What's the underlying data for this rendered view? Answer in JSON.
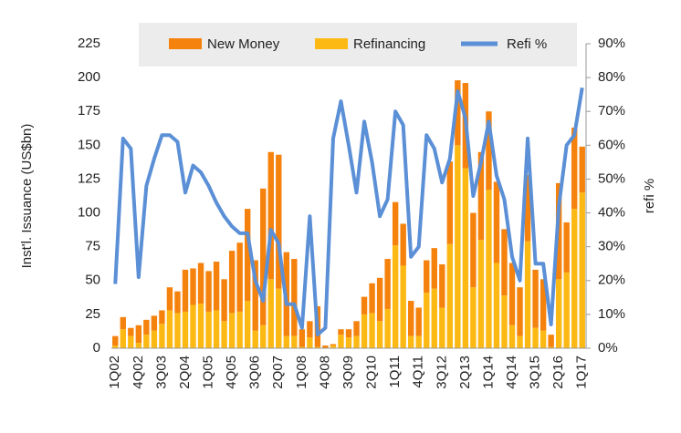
{
  "chart_data": {
    "type": "bar-line",
    "y_label": "Inst'l. Issuance (US$bn)",
    "y2_label": "refi %",
    "categories": [
      "1Q02",
      null,
      null,
      "4Q02",
      null,
      null,
      "3Q03",
      null,
      null,
      "2Q04",
      null,
      null,
      "1Q05",
      null,
      null,
      "4Q05",
      null,
      null,
      "3Q06",
      null,
      null,
      "2Q07",
      null,
      null,
      "1Q08",
      null,
      null,
      "4Q08",
      null,
      null,
      "3Q09",
      null,
      null,
      "2Q10",
      null,
      null,
      "1Q11",
      null,
      null,
      "4Q11",
      null,
      null,
      "3Q12",
      null,
      null,
      "2Q13",
      null,
      null,
      "1Q14",
      null,
      null,
      "4Q14",
      null,
      null,
      "3Q15",
      null,
      null,
      "2Q16",
      null,
      null,
      "1Q17"
    ],
    "series": [
      {
        "name": "New Money",
        "type": "bar",
        "color": "#f5820d",
        "values": [
          7,
          9,
          6,
          13,
          11,
          11,
          10,
          17,
          16,
          31,
          27,
          30,
          30,
          36,
          31,
          46,
          51,
          68,
          52,
          101,
          94,
          99,
          62,
          57,
          13,
          12,
          30,
          2,
          1,
          4,
          6,
          11,
          13,
          22,
          32,
          37,
          32,
          31,
          26,
          21,
          24,
          30,
          32,
          61,
          48,
          63,
          55,
          65,
          58,
          60,
          49,
          46,
          36,
          49,
          43,
          38,
          9,
          71,
          37,
          60,
          34
        ]
      },
      {
        "name": "Refinancing",
        "type": "bar",
        "color": "#fdb913",
        "values": [
          2,
          14,
          9,
          4,
          10,
          13,
          18,
          28,
          26,
          27,
          32,
          33,
          27,
          28,
          20,
          26,
          27,
          35,
          13,
          17,
          51,
          44,
          9,
          9,
          1,
          8,
          1,
          0,
          2,
          10,
          8,
          9,
          25,
          26,
          20,
          29,
          76,
          61,
          9,
          9,
          41,
          44,
          30,
          77,
          150,
          133,
          45,
          80,
          117,
          63,
          39,
          17,
          9,
          79,
          15,
          13,
          1,
          51,
          56,
          103,
          115
        ]
      },
      {
        "name": "Refi %",
        "type": "line",
        "axis": "y2",
        "color": "#5b8fd6",
        "values": [
          19,
          62,
          59,
          21,
          48,
          56,
          63,
          63,
          61,
          46,
          54,
          52,
          48,
          43,
          39,
          36,
          34,
          34,
          20,
          14,
          35,
          31,
          13,
          13,
          6,
          39,
          4,
          6,
          62,
          73,
          60,
          46,
          67,
          55,
          39,
          44,
          70,
          66,
          27,
          30,
          63,
          59,
          49,
          56,
          76,
          68,
          45,
          55,
          67,
          51,
          44,
          27,
          20,
          62,
          25,
          25,
          7,
          42,
          60,
          63,
          77
        ]
      }
    ],
    "ylim": [
      0,
      225
    ],
    "yticks": [
      0,
      25,
      50,
      75,
      100,
      125,
      150,
      175,
      200,
      225
    ],
    "y2lim": [
      0,
      90
    ],
    "y2ticks": [
      {
        "value": 0,
        "label": "0%"
      },
      {
        "value": 10,
        "label": "10%"
      },
      {
        "value": 20,
        "label": "20%"
      },
      {
        "value": 30,
        "label": "30%"
      },
      {
        "value": 40,
        "label": "40%"
      },
      {
        "value": 50,
        "label": "50%"
      },
      {
        "value": 60,
        "label": "60%"
      },
      {
        "value": 70,
        "label": "70%"
      },
      {
        "value": 80,
        "label": "80%"
      },
      {
        "value": 90,
        "label": "90%"
      }
    ],
    "legend": "top"
  }
}
